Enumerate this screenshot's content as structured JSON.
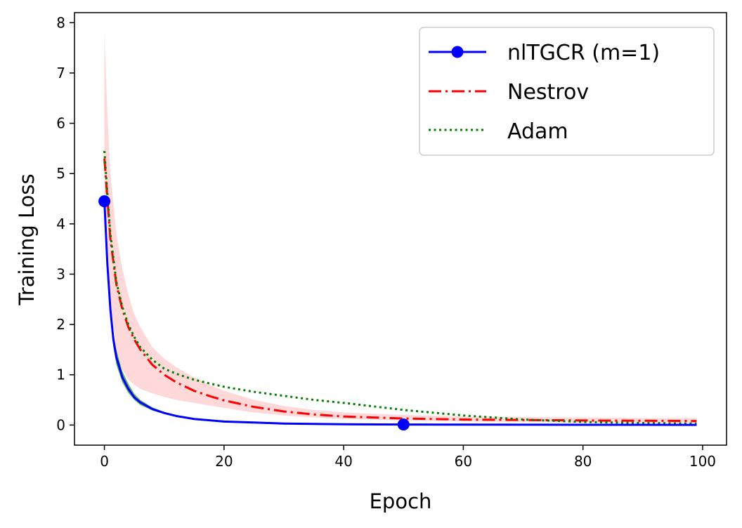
{
  "chart_data": {
    "type": "line",
    "title": "",
    "xlabel": "Epoch",
    "ylabel": "Training Loss",
    "xlim": [
      -5,
      104
    ],
    "ylim": [
      -0.4,
      8.2
    ],
    "xticks": [
      0,
      20,
      40,
      60,
      80,
      100
    ],
    "yticks": [
      0,
      1,
      2,
      3,
      4,
      5,
      6,
      7,
      8
    ],
    "grid": false,
    "legend_position": "top-right",
    "series": [
      {
        "name": "nlTGCR (m=1)",
        "color": "#0000ff",
        "style": "solid-with-markers",
        "marker_epochs": [
          0,
          50
        ],
        "x": [
          0,
          0.5,
          1,
          1.5,
          2,
          3,
          4,
          5,
          6,
          8,
          10,
          12,
          15,
          20,
          25,
          30,
          40,
          50,
          60,
          70,
          80,
          90,
          99
        ],
        "y": [
          4.45,
          3.2,
          2.3,
          1.7,
          1.35,
          0.95,
          0.72,
          0.55,
          0.45,
          0.32,
          0.24,
          0.18,
          0.12,
          0.07,
          0.05,
          0.03,
          0.015,
          0.01,
          0.008,
          0.006,
          0.005,
          0.004,
          0.003
        ],
        "band_color": "#2ca02c",
        "band_lower": [
          4.4,
          3.0,
          2.1,
          1.55,
          1.2,
          0.85,
          0.64,
          0.5,
          0.4,
          0.29,
          0.22,
          0.17,
          0.11,
          0.065,
          0.045,
          0.03,
          0.015,
          0.01,
          0.008,
          0.006,
          0.005,
          0.004,
          0.003
        ],
        "band_upper": [
          4.5,
          3.4,
          2.5,
          1.85,
          1.5,
          1.07,
          0.82,
          0.62,
          0.5,
          0.35,
          0.26,
          0.19,
          0.13,
          0.075,
          0.055,
          0.035,
          0.017,
          0.012,
          0.009,
          0.007,
          0.006,
          0.005,
          0.004
        ]
      },
      {
        "name": "Nestrov",
        "color": "#ff0000",
        "style": "dash-dot",
        "x": [
          0,
          0.5,
          1,
          2,
          3,
          4,
          5,
          6,
          8,
          10,
          12,
          15,
          18,
          20,
          25,
          30,
          35,
          40,
          50,
          60,
          70,
          80,
          90,
          99
        ],
        "y": [
          5.3,
          4.5,
          3.7,
          2.8,
          2.3,
          1.95,
          1.7,
          1.5,
          1.2,
          1.0,
          0.85,
          0.68,
          0.56,
          0.49,
          0.36,
          0.27,
          0.21,
          0.17,
          0.13,
          0.11,
          0.1,
          0.09,
          0.085,
          0.08
        ],
        "band_color": "#ffcccc",
        "band_lower": [
          4.6,
          3.8,
          2.5,
          1.5,
          1.1,
          0.9,
          0.8,
          0.72,
          0.63,
          0.56,
          0.5,
          0.44,
          0.38,
          0.34,
          0.25,
          0.19,
          0.15,
          0.12,
          0.09,
          0.07,
          0.06,
          0.05,
          0.045,
          0.04
        ],
        "band_upper": [
          7.8,
          6.2,
          5.0,
          3.8,
          3.1,
          2.6,
          2.2,
          1.95,
          1.55,
          1.32,
          1.15,
          0.95,
          0.78,
          0.68,
          0.5,
          0.38,
          0.3,
          0.25,
          0.2,
          0.17,
          0.16,
          0.15,
          0.14,
          0.14
        ]
      },
      {
        "name": "Adam",
        "color": "#008000",
        "style": "dotted",
        "x": [
          0,
          0.5,
          1,
          2,
          3,
          4,
          5,
          6,
          8,
          10,
          12,
          15,
          20,
          25,
          30,
          35,
          40,
          50,
          60,
          70,
          80,
          90,
          99
        ],
        "y": [
          5.45,
          4.6,
          3.8,
          2.85,
          2.35,
          2.0,
          1.75,
          1.55,
          1.3,
          1.12,
          1.02,
          0.9,
          0.76,
          0.66,
          0.58,
          0.5,
          0.44,
          0.3,
          0.19,
          0.11,
          0.06,
          0.04,
          0.03
        ]
      }
    ]
  }
}
